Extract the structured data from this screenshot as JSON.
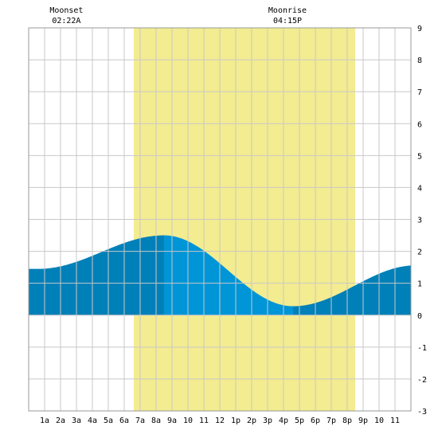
{
  "chart_data": {
    "type": "area",
    "xlim": [
      0,
      24
    ],
    "ylim": [
      -3,
      9
    ],
    "y_ticks": [
      -3,
      -2,
      -1,
      0,
      1,
      2,
      3,
      4,
      5,
      6,
      7,
      8,
      9
    ],
    "x_ticks": [
      {
        "x": 1,
        "label": "1a"
      },
      {
        "x": 2,
        "label": "2a"
      },
      {
        "x": 3,
        "label": "3a"
      },
      {
        "x": 4,
        "label": "4a"
      },
      {
        "x": 5,
        "label": "5a"
      },
      {
        "x": 6,
        "label": "6a"
      },
      {
        "x": 7,
        "label": "7a"
      },
      {
        "x": 8,
        "label": "8a"
      },
      {
        "x": 9,
        "label": "9a"
      },
      {
        "x": 10,
        "label": "10"
      },
      {
        "x": 11,
        "label": "11"
      },
      {
        "x": 12,
        "label": "12"
      },
      {
        "x": 13,
        "label": "1p"
      },
      {
        "x": 14,
        "label": "2p"
      },
      {
        "x": 15,
        "label": "3p"
      },
      {
        "x": 16,
        "label": "4p"
      },
      {
        "x": 17,
        "label": "5p"
      },
      {
        "x": 18,
        "label": "6p"
      },
      {
        "x": 19,
        "label": "7p"
      },
      {
        "x": 20,
        "label": "8p"
      },
      {
        "x": 21,
        "label": "9p"
      },
      {
        "x": 22,
        "label": "10"
      },
      {
        "x": 23,
        "label": "11"
      }
    ],
    "grid": true,
    "daylight": {
      "start": 6.6,
      "end": 20.5,
      "color": "#f3ec90"
    },
    "tide": {
      "low1": {
        "time": 0.6,
        "height": 1.45
      },
      "high": {
        "time": 8.5,
        "height": 2.5
      },
      "low2": {
        "time": 16.6,
        "height": 0.28
      },
      "high2": {
        "time": 24.3,
        "height": 1.56
      },
      "split_time": 8.5,
      "color_dark": "#0080b8",
      "color_light": "#0095d6"
    },
    "annotations": [
      {
        "x": 2.37,
        "title": "Moonset",
        "time": "02:22A"
      },
      {
        "x": 16.25,
        "title": "Moonrise",
        "time": "04:15P"
      }
    ]
  }
}
